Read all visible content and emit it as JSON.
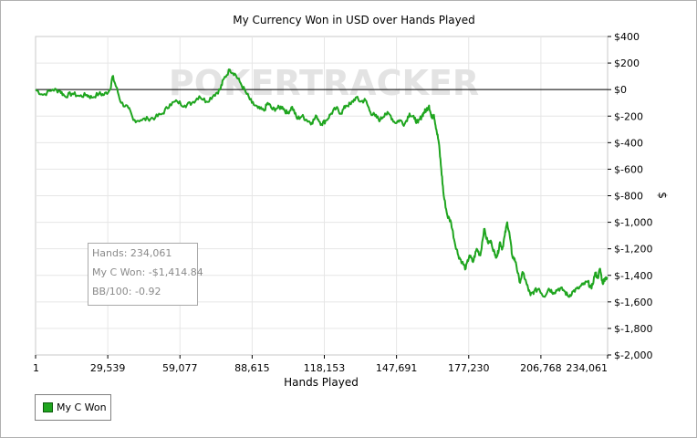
{
  "colors": {
    "series": "#1fa51f",
    "zero_line": "#000000",
    "grid": "#e6e6e6",
    "watermark": "#e3e3e3"
  },
  "watermark": "POKERTRACKER",
  "info_box": {
    "hands": "Hands: 234,061",
    "won": "My C Won: -$1,414.84",
    "bb100": "BB/100: -0.92"
  },
  "chart_data": {
    "type": "line",
    "title": "My Currency Won in USD over Hands Played",
    "xlabel": "Hands Played",
    "ylabel": "$",
    "xlim": [
      1,
      234061
    ],
    "ylim": [
      -2000,
      400
    ],
    "x_ticks": [
      1,
      29539,
      59077,
      88615,
      118153,
      147691,
      177230,
      206768,
      234061
    ],
    "x_tick_labels": [
      "1",
      "29,539",
      "59,077",
      "88,615",
      "118,153",
      "147,691",
      "177,230",
      "206,768",
      "234,061"
    ],
    "y_ticks": [
      400,
      200,
      0,
      -200,
      -400,
      -600,
      -800,
      -1000,
      -1200,
      -1400,
      -1600,
      -1800,
      -2000
    ],
    "y_tick_labels": [
      "$400",
      "$200",
      "$0",
      "$-200",
      "$-400",
      "$-600",
      "$-800",
      "$-1,000",
      "$-1,200",
      "$-1,400",
      "$-1,600",
      "$-1,800",
      "$-2,000"
    ],
    "grid": true,
    "legend_position": "bottom-left",
    "series": [
      {
        "name": "My C Won",
        "x": [
          1,
          3000,
          7000,
          10000,
          12000,
          15000,
          18000,
          21000,
          23000,
          26000,
          28000,
          30500,
          31500,
          33000,
          35000,
          38000,
          40000,
          43000,
          46000,
          49000,
          52000,
          55000,
          58000,
          61000,
          64000,
          67000,
          70000,
          73000,
          75500,
          77000,
          79500,
          81500,
          83500,
          86000,
          88500,
          91000,
          93500,
          95000,
          97000,
          99000,
          101000,
          103000,
          105000,
          107000,
          109000,
          111000,
          113000,
          115000,
          117000,
          119000,
          121000,
          123000,
          125000,
          127000,
          129000,
          131000,
          133000,
          135000,
          137000,
          139000,
          141000,
          143000,
          145000,
          147000,
          149000,
          151000,
          153000,
          155000,
          156500,
          158000,
          159000,
          160000,
          161000,
          162000,
          163000,
          164000,
          165000,
          166000,
          167000,
          168500,
          170000,
          171500,
          173000,
          174500,
          176000,
          177500,
          179000,
          180500,
          182000,
          183500,
          185000,
          186500,
          188000,
          189000,
          190000,
          191000,
          192000,
          193000,
          194000,
          195000,
          196500,
          198000,
          199500,
          201000,
          202500,
          204000,
          206000,
          208000,
          210000,
          212000,
          214000,
          216000,
          218000,
          220000,
          222000,
          224000,
          226000,
          227500,
          229000,
          230000,
          231000,
          232000,
          233000,
          234061
        ],
        "values": [
          0,
          -40,
          0,
          -10,
          -50,
          -30,
          -50,
          -40,
          -60,
          -30,
          -40,
          0,
          100,
          20,
          -100,
          -140,
          -230,
          -230,
          -220,
          -210,
          -180,
          -110,
          -90,
          -120,
          -100,
          -50,
          -90,
          -40,
          0,
          80,
          150,
          120,
          60,
          -20,
          -100,
          -140,
          -160,
          -100,
          -150,
          -140,
          -130,
          -180,
          -130,
          -220,
          -200,
          -230,
          -250,
          -200,
          -260,
          -230,
          -180,
          -140,
          -180,
          -120,
          -110,
          -60,
          -90,
          -80,
          -170,
          -200,
          -230,
          -180,
          -190,
          -250,
          -230,
          -260,
          -180,
          -220,
          -250,
          -200,
          -170,
          -150,
          -120,
          -210,
          -190,
          -300,
          -400,
          -600,
          -800,
          -950,
          -1000,
          -1150,
          -1250,
          -1300,
          -1350,
          -1250,
          -1300,
          -1200,
          -1250,
          -1050,
          -1150,
          -1150,
          -1250,
          -1250,
          -1150,
          -1200,
          -1100,
          -1000,
          -1100,
          -1250,
          -1300,
          -1450,
          -1380,
          -1470,
          -1550,
          -1520,
          -1500,
          -1560,
          -1500,
          -1530,
          -1500,
          -1510,
          -1560,
          -1520,
          -1500,
          -1470,
          -1450,
          -1500,
          -1380,
          -1420,
          -1350,
          -1460,
          -1420,
          -1415
        ]
      }
    ]
  }
}
